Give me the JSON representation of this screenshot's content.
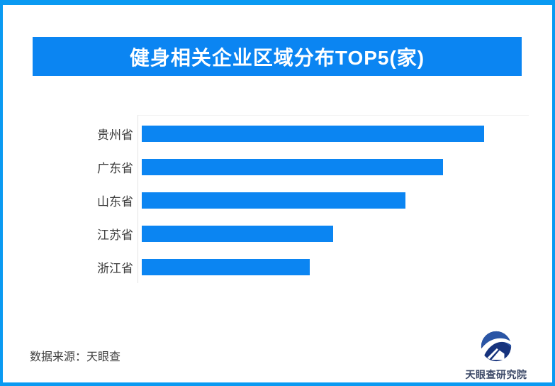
{
  "window": {
    "background": "#ffffff",
    "border_color": "#0a9af2"
  },
  "header": {
    "title": "健身相关企业区域分布TOP5(家)",
    "banner_color": "#0b85f2",
    "text_color": "#ffffff"
  },
  "chart_data": {
    "type": "bar",
    "orientation": "horizontal",
    "title": "健身相关企业区域分布TOP5(家)",
    "categories": [
      "贵州省",
      "广东省",
      "山东省",
      "江苏省",
      "浙江省"
    ],
    "values_relative_pct": [
      100,
      88,
      77,
      56,
      49
    ],
    "value_labels_visible": false,
    "numeric_axis_visible": false,
    "bar_color": "#0b85f2",
    "axis_line_color": "#e4e4e4",
    "category_label_color": "#3c3c3c",
    "grid": false,
    "legend": false
  },
  "footer": {
    "source_text": "数据来源：天眼查",
    "logo_label": "天眼查研究院",
    "logo_colors": {
      "navy": "#16337d",
      "blue": "#2a55a5"
    }
  }
}
